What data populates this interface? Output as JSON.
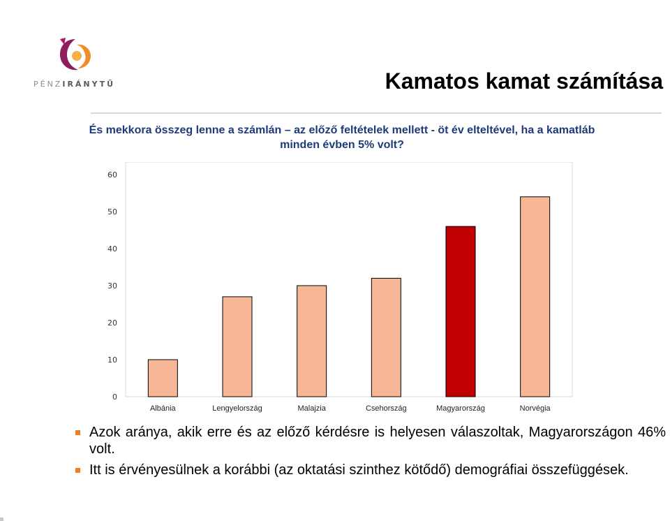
{
  "logo": {
    "text_part1": "PÉNZ",
    "text_part2": "IRÁNYTŰ"
  },
  "title": "Kamatos kamat számítása",
  "question": "És mekkora összeg lenne a számlán – az előző feltételek mellett - öt év elteltével, ha a kamatláb minden évben 5% volt?",
  "colors": {
    "bar": "#f7b796",
    "highlight": "#c00000",
    "bullet": "#f07d22",
    "question": "#1f3a7a"
  },
  "chart_data": {
    "type": "bar",
    "categories": [
      "Albánia",
      "Lengyelország",
      "Malajzia",
      "Csehország",
      "Magyarország",
      "Norvégia"
    ],
    "values": [
      10,
      27,
      30,
      32,
      46,
      54
    ],
    "highlight_category": "Magyarország",
    "ylim": [
      0,
      60
    ],
    "yticks": [
      0,
      10,
      20,
      30,
      40,
      50,
      60
    ],
    "grid": false
  },
  "bullets": [
    "Azok aránya, akik erre és az előző kérdésre is helyesen válaszoltak, Magyarországon 46% volt.",
    "Itt is érvényesülnek a korábbi (az oktatási szinthez kötődő) demográfiai összefüggések."
  ]
}
